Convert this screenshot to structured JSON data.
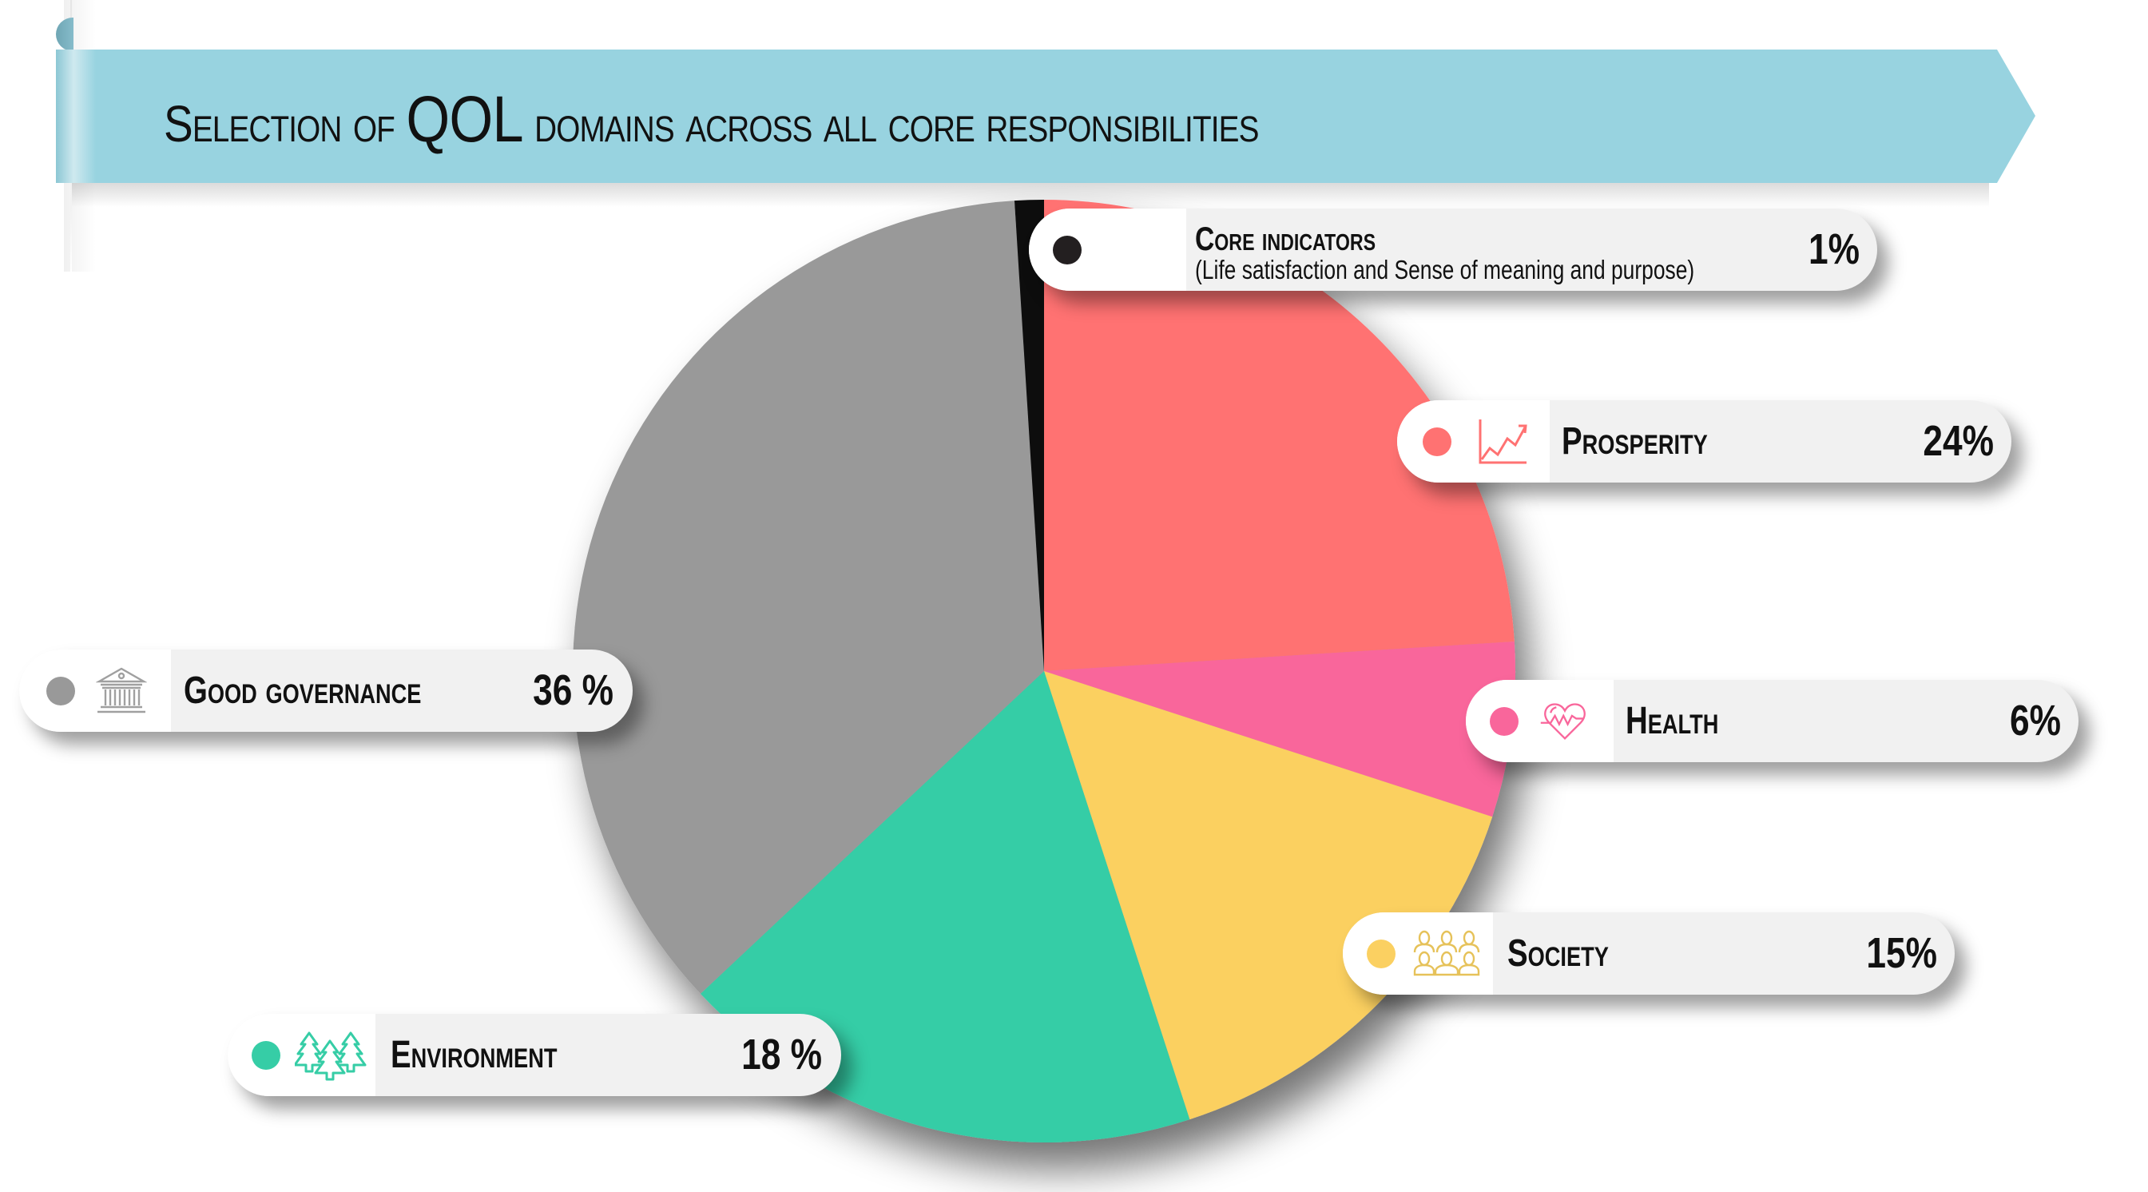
{
  "header": {
    "title_prefix": "Selection of",
    "title_emphasis": "QOL",
    "title_suffix": "domains across all core responsibilities",
    "ribbon_color": "#98d3e0"
  },
  "chart_data": {
    "type": "pie",
    "title": "Selection of QOL domains across all core responsibilities",
    "start_angle": "12 o'clock, clockwise",
    "categories": [
      "Prosperity",
      "Health",
      "Society",
      "Environment",
      "Good governance",
      "Core indicators"
    ],
    "values": [
      24,
      6,
      15,
      18,
      36,
      1
    ],
    "unit": "%",
    "colors": [
      "#ff7272",
      "#f9669b",
      "#fbd061",
      "#36cda6",
      "#999999",
      "#111111"
    ],
    "legend_position": "callout labels around pie"
  },
  "labels": {
    "core": {
      "title": "Core indicators",
      "subtitle": "(Life satisfaction and Sense of meaning and purpose)",
      "value": "1%",
      "color": "#231f20",
      "icon": "none"
    },
    "prosperity": {
      "title": "Prosperity",
      "value": "24%",
      "color": "#ff7272",
      "icon": "line-chart-icon"
    },
    "health": {
      "title": "Health",
      "value": "6%",
      "color": "#f9669b",
      "icon": "heartbeat-icon"
    },
    "society": {
      "title": "Society",
      "value": "15%",
      "color": "#fbd061",
      "icon": "people-group-icon"
    },
    "environment": {
      "title": "Environment",
      "value": "18 %",
      "color": "#36cda6",
      "icon": "trees-icon"
    },
    "governance": {
      "title": "Good governance",
      "value": "36 %",
      "color": "#999999",
      "icon": "government-building-icon"
    }
  }
}
